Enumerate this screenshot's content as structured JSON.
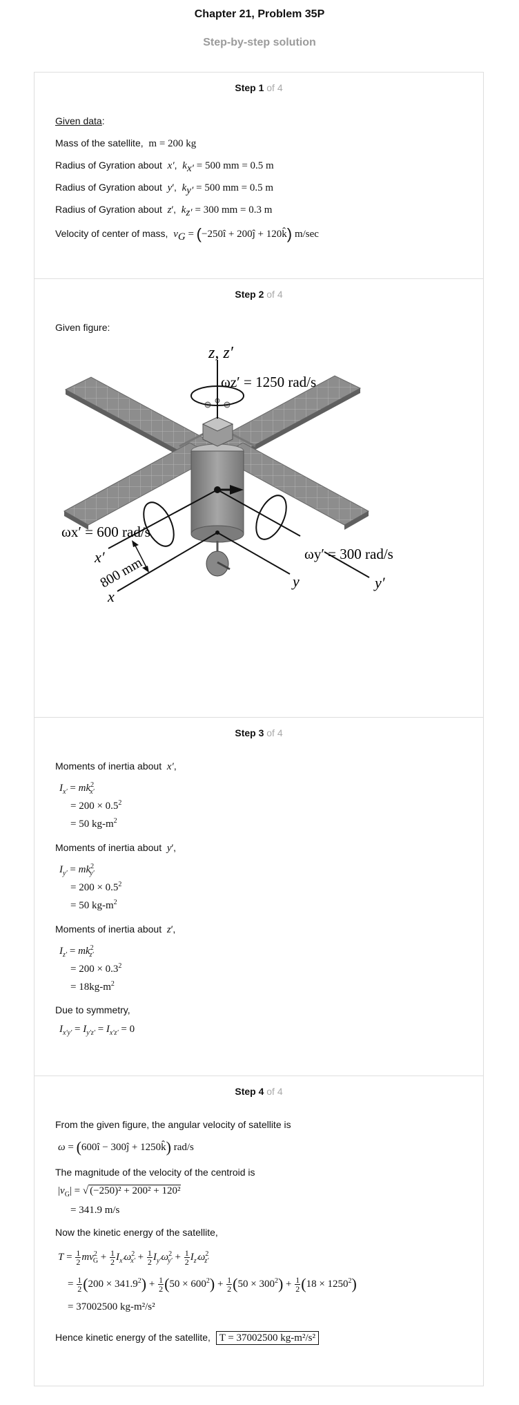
{
  "header": {
    "title": "Chapter 21, Problem 35P",
    "subtitle": "Step-by-step solution"
  },
  "steps": [
    {
      "label": "Step 1",
      "of": "of 4"
    },
    {
      "label": "Step 2",
      "of": "of 4"
    },
    {
      "label": "Step 3",
      "of": "of 4"
    },
    {
      "label": "Step 4",
      "of": "of 4"
    }
  ],
  "step1": {
    "given_data": "Given data",
    "colon": ":",
    "mass_label": "Mass of the satellite,",
    "mass_eq": "m = 200 kg",
    "rx_label": "Radius of Gyration about",
    "rx_eq": "= 500 mm = 0.5 m",
    "ry_label": "Radius of Gyration about",
    "ry_eq": "= 500 mm = 0.5 m",
    "rz_label": "Radius of Gyration about",
    "rz_eq": "= 300 mm = 0.3 m",
    "vel_label": "Velocity of center of mass,",
    "vel_eq": "−250î + 200ĵ + 120k̂",
    "vel_unit": "m/sec"
  },
  "step2": {
    "given_figure": "Given figure:",
    "figure": {
      "axis_z": "z, z′",
      "omega_z": "ωz′ = 1250 rad/s",
      "omega_x": "ωx′ = 600 rad/s",
      "omega_y": "ωy′ = 300 rad/s",
      "x_prime": "x′",
      "x": "x",
      "y": "y",
      "y_prime": "y′",
      "distance": "800 mm"
    }
  },
  "step3": {
    "mx_label": "Moments of inertia about",
    "my_label": "Moments of inertia about",
    "mz_label": "Moments of inertia about",
    "ix_line2": "= 200 × 0.5",
    "ix_line3": "= 50 kg-m",
    "iy_line2": "= 200 × 0.5",
    "iy_line3": "= 50 kg-m",
    "iz_line2": "= 200 × 0.3",
    "iz_line3": "= 18kg-m",
    "sym_label": "Due to symmetry,"
  },
  "step4": {
    "ang_label": "From the given figure, the angular velocity of satellite is",
    "omega_eq": "600î − 300ĵ + 1250k̂",
    "omega_unit": "rad/s",
    "mag_label": "The magnitude of the velocity of the centroid is",
    "vg_radicand": "(−250)² + 200² + 120²",
    "vg_result": "= 341.9 m/s",
    "ke_label": "Now the kinetic energy of the satellite,",
    "ke_result": "= 37002500 kg-m²/s²",
    "final_label": "Hence kinetic energy of the satellite,",
    "final_eq": "T = 37002500 kg-m²/s²"
  }
}
